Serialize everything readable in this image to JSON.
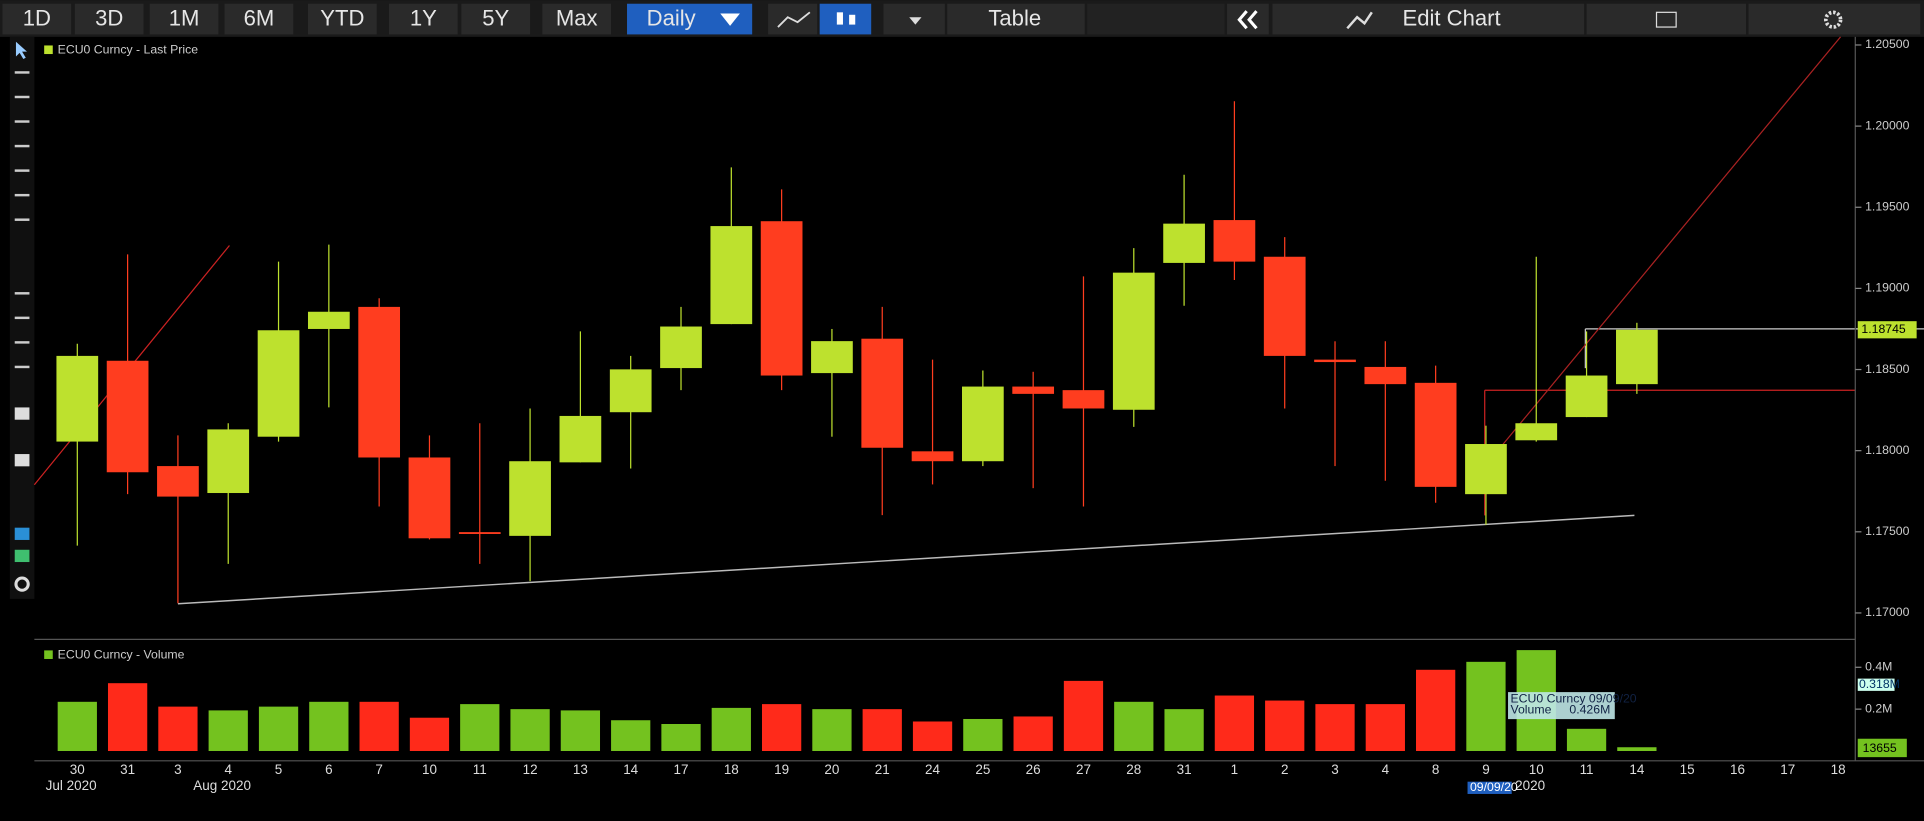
{
  "toolbar": {
    "ranges": [
      "1D",
      "3D",
      "1M",
      "6M",
      "YTD",
      "1Y",
      "5Y",
      "Max"
    ],
    "period": "Daily",
    "table": "Table",
    "edit": "Edit Chart"
  },
  "chart_data": [
    {
      "type": "candlestick",
      "title": "ECU0 Curncy - Last Price",
      "categories": [
        "30",
        "31",
        "3",
        "4",
        "5",
        "6",
        "7",
        "10",
        "11",
        "12",
        "13",
        "14",
        "17",
        "18",
        "19",
        "20",
        "21",
        "24",
        "25",
        "26",
        "27",
        "28",
        "31",
        "1",
        "2",
        "3",
        "4",
        "8",
        "9",
        "10",
        "11",
        "14",
        "15",
        "16",
        "17",
        "18"
      ],
      "months": [
        {
          "index": 0,
          "label": "Jul 2020"
        },
        {
          "index": 3,
          "label": "Aug 2020"
        },
        {
          "index": 29,
          "label": "2020"
        }
      ],
      "open": [
        1.18056,
        1.18554,
        1.17905,
        1.17739,
        1.18086,
        1.1875,
        1.18886,
        1.17958,
        1.17498,
        1.17475,
        1.17928,
        1.18237,
        1.18509,
        1.1878,
        1.19414,
        1.18478,
        1.1869,
        1.17996,
        1.17935,
        1.18395,
        1.18373,
        1.18252,
        1.19157,
        1.19421,
        1.19195,
        1.18561,
        1.18516,
        1.18418,
        1.17732,
        1.18064,
        1.18207,
        1.1841,
        null,
        null,
        null,
        null
      ],
      "high": [
        1.18659,
        1.1921,
        1.18094,
        1.18169,
        1.19165,
        1.1927,
        1.18939,
        1.18094,
        1.18169,
        1.1826,
        1.18735,
        1.18584,
        1.18886,
        1.19746,
        1.1961,
        1.1875,
        1.18886,
        1.18561,
        1.18494,
        1.18486,
        1.19074,
        1.19248,
        1.197,
        1.20153,
        1.19316,
        1.18674,
        1.18674,
        1.18524,
        1.18154,
        1.19195,
        1.18735,
        1.18788,
        null,
        null,
        null,
        null
      ],
      "low": [
        1.17415,
        1.17732,
        1.1706,
        1.17302,
        1.18056,
        1.18267,
        1.17656,
        1.17453,
        1.17302,
        1.17196,
        1.17928,
        1.1789,
        1.18373,
        1.1878,
        1.18373,
        1.18086,
        1.17603,
        1.17792,
        1.17905,
        1.17769,
        1.17656,
        1.18147,
        1.18893,
        1.19052,
        1.1826,
        1.17905,
        1.17815,
        1.17679,
        1.17543,
        1.18056,
        1.18207,
        1.1835,
        null,
        null,
        null,
        null
      ],
      "close": [
        1.18584,
        1.17867,
        1.17717,
        1.18131,
        1.18742,
        1.18856,
        1.17958,
        1.1746,
        1.1749,
        1.17935,
        1.18214,
        1.18501,
        1.18765,
        1.19384,
        1.18463,
        1.18675,
        1.18018,
        1.17935,
        1.18395,
        1.1835,
        1.1826,
        1.19097,
        1.19399,
        1.19165,
        1.18584,
        1.18546,
        1.1841,
        1.17777,
        1.18041,
        1.18169,
        1.18463,
        1.18745,
        null,
        null,
        null,
        null
      ],
      "last_price_label": "1.18745",
      "up_color": "#bde12e",
      "down_color": "#ff3d1f",
      "ylim": [
        1.1686,
        1.2055
      ],
      "yticks": [
        {
          "value": 1.17,
          "label": "1.17000"
        },
        {
          "value": 1.175,
          "label": "1.17500"
        },
        {
          "value": 1.18,
          "label": "1.18000"
        },
        {
          "value": 1.185,
          "label": "1.18500"
        },
        {
          "value": 1.19,
          "label": "1.19000"
        },
        {
          "value": 1.195,
          "label": "1.19500"
        },
        {
          "value": 1.2,
          "label": "1.20000"
        },
        {
          "value": 1.205,
          "label": "1.20500"
        }
      ]
    },
    {
      "type": "bar",
      "title": "ECU0 Curncy - Volume",
      "values": [
        0.235,
        0.324,
        0.212,
        0.194,
        0.212,
        0.235,
        0.235,
        0.159,
        0.224,
        0.2,
        0.194,
        0.147,
        0.129,
        0.206,
        0.224,
        0.2,
        0.2,
        0.141,
        0.153,
        0.165,
        0.335,
        0.235,
        0.2,
        0.265,
        0.241,
        0.224,
        0.224,
        0.388,
        0.426,
        0.482,
        0.106,
        0.018,
        null,
        null,
        null,
        null
      ],
      "colors": [
        "#74c21f",
        "#ff2a1a",
        "#ff2a1a",
        "#74c21f",
        "#74c21f",
        "#74c21f",
        "#ff2a1a",
        "#ff2a1a",
        "#74c21f",
        "#74c21f",
        "#74c21f",
        "#74c21f",
        "#74c21f",
        "#74c21f",
        "#ff2a1a",
        "#74c21f",
        "#ff2a1a",
        "#ff2a1a",
        "#74c21f",
        "#ff2a1a",
        "#ff2a1a",
        "#74c21f",
        "#74c21f",
        "#ff2a1a",
        "#ff2a1a",
        "#ff2a1a",
        "#ff2a1a",
        "#ff2a1a",
        "#74c21f",
        "#74c21f",
        "#74c21f",
        "#74c21f",
        null,
        null,
        null,
        null
      ],
      "ylim": [
        0,
        0.51
      ],
      "yticks": [
        {
          "value": 0.2,
          "label": "0.2M"
        },
        {
          "value": 0.4,
          "label": "0.4M"
        }
      ],
      "tags": [
        "0.318M",
        "13655"
      ],
      "tooltip": {
        "title": "ECU0 Curncy 09/09/20",
        "name": "Volume",
        "value": "0.426M"
      },
      "date_tag": "09/09/20"
    }
  ]
}
